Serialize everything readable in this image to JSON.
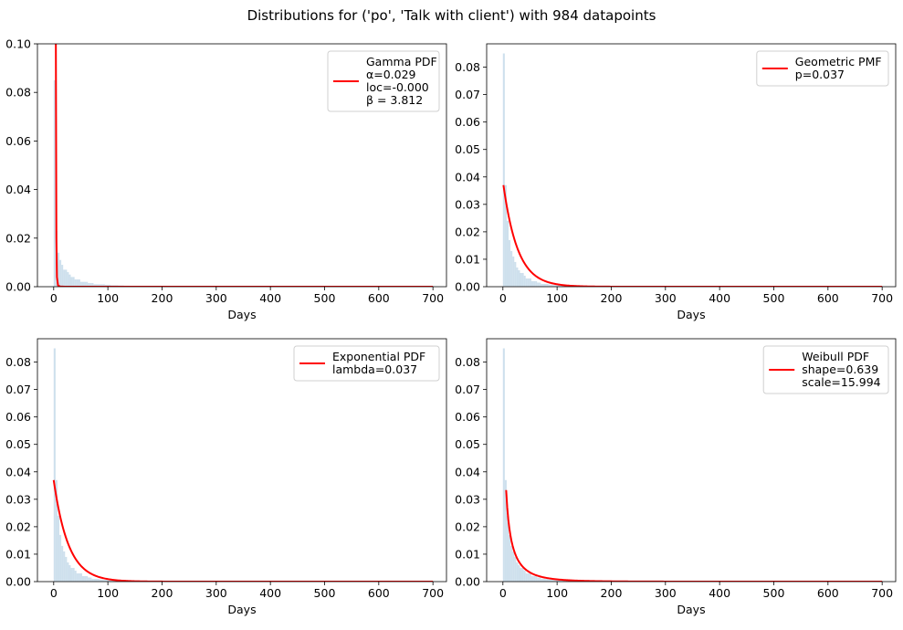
{
  "suptitle": "Distributions for ('po', 'Talk with client') with 984 datapoints",
  "colors": {
    "hist": "#c6dbea",
    "curve": "#ff0000",
    "axis": "#000000"
  },
  "chart_data": [
    {
      "type": "bar",
      "subtype": "histogram+line",
      "xlabel": "Days",
      "xlim": [
        -30,
        725
      ],
      "ylim": [
        0,
        0.1
      ],
      "xticks": [
        0,
        100,
        200,
        300,
        400,
        500,
        600,
        700
      ],
      "yticks": [
        0.0,
        0.02,
        0.04,
        0.06,
        0.08,
        0.1
      ],
      "ytick_labels": [
        "0.00",
        "0.02",
        "0.04",
        "0.06",
        "0.08",
        "0.10"
      ],
      "legend": {
        "position": "top-right",
        "lines": [
          "Gamma PDF",
          "α=0.029",
          "loc=-0.000",
          "β = 3.812"
        ]
      },
      "histogram": {
        "bin_width": 3.5,
        "start": 0,
        "values": [
          0.085,
          0.023,
          0.014,
          0.011,
          0.009,
          0.007,
          0.007,
          0.006,
          0.005,
          0.004,
          0.004,
          0.003,
          0.003,
          0.003,
          0.002,
          0.002,
          0.002,
          0.002,
          0.0015,
          0.0015,
          0.0015,
          0.001,
          0.001,
          0.001,
          0.001,
          0.001,
          0.001,
          0.0008,
          0.0008,
          0.0008,
          0.0006,
          0.0006,
          0.0006,
          0.0006,
          0.0005,
          0.0005,
          0.0005,
          0.0004,
          0.0004,
          0.0004
        ]
      },
      "series": [
        {
          "name": "Gamma PDF",
          "x": [
            4,
            4.5,
            5,
            6,
            8,
            12,
            20,
            40,
            100,
            200,
            300,
            400,
            500,
            600,
            700
          ],
          "y": [
            0.1,
            0.06,
            0.02,
            0.004,
            0.0005,
            0.0001,
            0,
            0,
            0,
            0,
            0,
            0,
            0,
            0,
            0
          ]
        }
      ]
    },
    {
      "type": "bar",
      "subtype": "histogram+line",
      "xlabel": "Days",
      "xlim": [
        -30,
        725
      ],
      "ylim": [
        0,
        0.0885
      ],
      "xticks": [
        0,
        100,
        200,
        300,
        400,
        500,
        600,
        700
      ],
      "yticks": [
        0.0,
        0.01,
        0.02,
        0.03,
        0.04,
        0.05,
        0.06,
        0.07,
        0.08
      ],
      "ytick_labels": [
        "0.00",
        "0.01",
        "0.02",
        "0.03",
        "0.04",
        "0.05",
        "0.06",
        "0.07",
        "0.08"
      ],
      "legend": {
        "position": "top-right",
        "lines": [
          "Geometric PMF",
          "p=0.037"
        ]
      },
      "histogram": {
        "bin_width": 3.5,
        "start": 0,
        "values": [
          0.085,
          0.037,
          0.024,
          0.017,
          0.013,
          0.011,
          0.009,
          0.007,
          0.006,
          0.005,
          0.005,
          0.004,
          0.003,
          0.003,
          0.003,
          0.002,
          0.002,
          0.002,
          0.0015,
          0.0015,
          0.001,
          0.001,
          0.001,
          0.001,
          0.0008,
          0.0008,
          0.0006,
          0.0006,
          0.0005,
          0.0005,
          0.0004,
          0.0004,
          0.0003,
          0.0003,
          0.0003,
          0.0002,
          0.0002,
          0.0002,
          0.0002,
          0.0002
        ]
      },
      "series": [
        {
          "name": "Geometric PMF",
          "model": "geometric",
          "p": 0.037,
          "x_range": [
            1,
            700
          ]
        }
      ]
    },
    {
      "type": "bar",
      "subtype": "histogram+line",
      "xlabel": "Days",
      "xlim": [
        -30,
        725
      ],
      "ylim": [
        0,
        0.0885
      ],
      "xticks": [
        0,
        100,
        200,
        300,
        400,
        500,
        600,
        700
      ],
      "yticks": [
        0.0,
        0.01,
        0.02,
        0.03,
        0.04,
        0.05,
        0.06,
        0.07,
        0.08
      ],
      "ytick_labels": [
        "0.00",
        "0.01",
        "0.02",
        "0.03",
        "0.04",
        "0.05",
        "0.06",
        "0.07",
        "0.08"
      ],
      "legend": {
        "position": "top-right",
        "lines": [
          "Exponential PDF",
          "lambda=0.037"
        ]
      },
      "histogram": {
        "bin_width": 3.5,
        "start": 0,
        "values": [
          0.085,
          0.037,
          0.024,
          0.017,
          0.013,
          0.011,
          0.009,
          0.007,
          0.006,
          0.005,
          0.005,
          0.004,
          0.003,
          0.003,
          0.003,
          0.002,
          0.002,
          0.002,
          0.0015,
          0.0015,
          0.001,
          0.001,
          0.001,
          0.001,
          0.0008,
          0.0008,
          0.0006,
          0.0006,
          0.0005,
          0.0005,
          0.0004,
          0.0004,
          0.0003,
          0.0003,
          0.0003,
          0.0002,
          0.0002,
          0.0002,
          0.0002,
          0.0002
        ]
      },
      "series": [
        {
          "name": "Exponential PDF",
          "model": "exponential",
          "lambda": 0.037,
          "x_range": [
            0,
            700
          ]
        }
      ]
    },
    {
      "type": "bar",
      "subtype": "histogram+line",
      "xlabel": "Days",
      "xlim": [
        -30,
        725
      ],
      "ylim": [
        0,
        0.0885
      ],
      "xticks": [
        0,
        100,
        200,
        300,
        400,
        500,
        600,
        700
      ],
      "yticks": [
        0.0,
        0.01,
        0.02,
        0.03,
        0.04,
        0.05,
        0.06,
        0.07,
        0.08
      ],
      "ytick_labels": [
        "0.00",
        "0.01",
        "0.02",
        "0.03",
        "0.04",
        "0.05",
        "0.06",
        "0.07",
        "0.08"
      ],
      "legend": {
        "position": "top-right",
        "lines": [
          "Weibull PDF",
          "shape=0.639",
          "scale=15.994"
        ]
      },
      "histogram": {
        "bin_width": 3.5,
        "start": 0,
        "values": [
          0.085,
          0.037,
          0.024,
          0.017,
          0.013,
          0.011,
          0.009,
          0.007,
          0.006,
          0.005,
          0.005,
          0.004,
          0.003,
          0.003,
          0.003,
          0.002,
          0.002,
          0.002,
          0.0015,
          0.0015,
          0.001,
          0.001,
          0.001,
          0.001,
          0.0008,
          0.0008,
          0.0006,
          0.0006,
          0.0005,
          0.0005,
          0.0004,
          0.0004,
          0.0003,
          0.0003,
          0.0003,
          0.0002,
          0.0002,
          0.0002,
          0.0002,
          0.0002
        ]
      },
      "series": [
        {
          "name": "Weibull PDF",
          "model": "weibull",
          "shape": 0.639,
          "scale": 15.994,
          "x_range": [
            6,
            700
          ]
        }
      ]
    }
  ]
}
